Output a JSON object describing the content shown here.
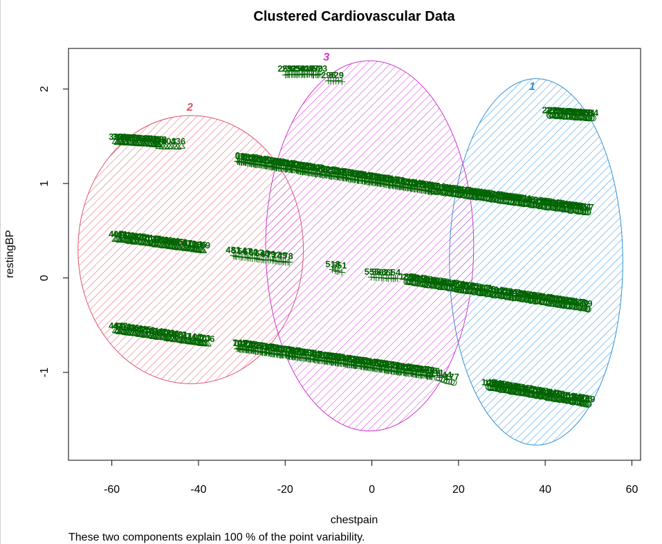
{
  "chart_data": {
    "type": "scatter",
    "title": "Clustered Cardiovascular Data",
    "xlabel": "chestpain",
    "ylabel": "restingBP",
    "subtitle": "These two components explain 100 % of the point variability.",
    "xlim": [
      -70,
      62
    ],
    "ylim": [
      -1.93,
      2.43
    ],
    "x_ticks": [
      -60,
      -40,
      -20,
      0,
      20,
      40,
      60
    ],
    "y_ticks": [
      -1,
      0,
      1,
      2
    ],
    "grid": false,
    "legend": "none",
    "point_color": "#006400",
    "clusters": [
      {
        "label": "1",
        "color": "#2D8FD8",
        "center": [
          37.9,
          0.17
        ],
        "rx": 20.0,
        "ry": 1.94,
        "label_pos": [
          37,
          1.99
        ]
      },
      {
        "label": "2",
        "color": "#DF536B",
        "center": [
          -41.8,
          0.3
        ],
        "rx": 26.0,
        "ry": 1.42,
        "label_pos": [
          -42,
          1.77
        ]
      },
      {
        "label": "3",
        "color": "#CC33CC",
        "center": [
          -0.5,
          0.34
        ],
        "rx": 24.0,
        "ry": 1.96,
        "label_pos": [
          -10.5,
          2.3
        ]
      }
    ],
    "point_groups": [
      {
        "cluster": 3,
        "x0": -31,
        "y0": 1.3,
        "x1": 14,
        "y1": 0.98,
        "n": 220
      },
      {
        "cluster": 1,
        "x0": 14,
        "y0": 0.98,
        "x1": 50,
        "y1": 0.75,
        "n": 150
      },
      {
        "cluster": 3,
        "x0": -31,
        "y0": -0.68,
        "x1": 14,
        "y1": -0.98,
        "n": 220
      },
      {
        "cluster": 1,
        "x0": 15,
        "y0": -1.0,
        "x1": 19,
        "y1": -1.05,
        "n": 8
      },
      {
        "cluster": 1,
        "x0": 27,
        "y0": -1.1,
        "x1": 50,
        "y1": -1.28,
        "n": 110
      },
      {
        "cluster": 1,
        "x0": 8,
        "y0": 0.02,
        "x1": 50,
        "y1": -0.27,
        "n": 170
      },
      {
        "cluster": 1,
        "x0": 41,
        "y0": 1.78,
        "x1": 51,
        "y1": 1.75,
        "n": 45
      },
      {
        "cluster": 3,
        "x0": -20,
        "y0": 2.22,
        "x1": -12,
        "y1": 2.22,
        "n": 25
      },
      {
        "cluster": 3,
        "x0": -10,
        "y0": 2.15,
        "x1": -7,
        "y1": 2.15,
        "n": 6
      },
      {
        "cluster": 2,
        "x0": -59,
        "y0": 1.5,
        "x1": -49,
        "y1": 1.47,
        "n": 40
      },
      {
        "cluster": 2,
        "x0": -49,
        "y0": 1.45,
        "x1": -44,
        "y1": 1.45,
        "n": 8
      },
      {
        "cluster": 2,
        "x0": -59,
        "y0": 0.47,
        "x1": -39,
        "y1": 0.35,
        "n": 70
      },
      {
        "cluster": 2,
        "x0": -59,
        "y0": -0.5,
        "x1": -38,
        "y1": -0.64,
        "n": 70
      },
      {
        "cluster": 3,
        "x0": -32,
        "y0": 0.3,
        "x1": -19,
        "y1": 0.23,
        "n": 30
      },
      {
        "cluster": 3,
        "x0": -9,
        "y0": 0.15,
        "x1": -7,
        "y1": 0.13,
        "n": 5
      },
      {
        "cluster": 3,
        "x0": 0,
        "y0": 0.07,
        "x1": 6,
        "y1": 0.06,
        "n": 12
      }
    ]
  }
}
